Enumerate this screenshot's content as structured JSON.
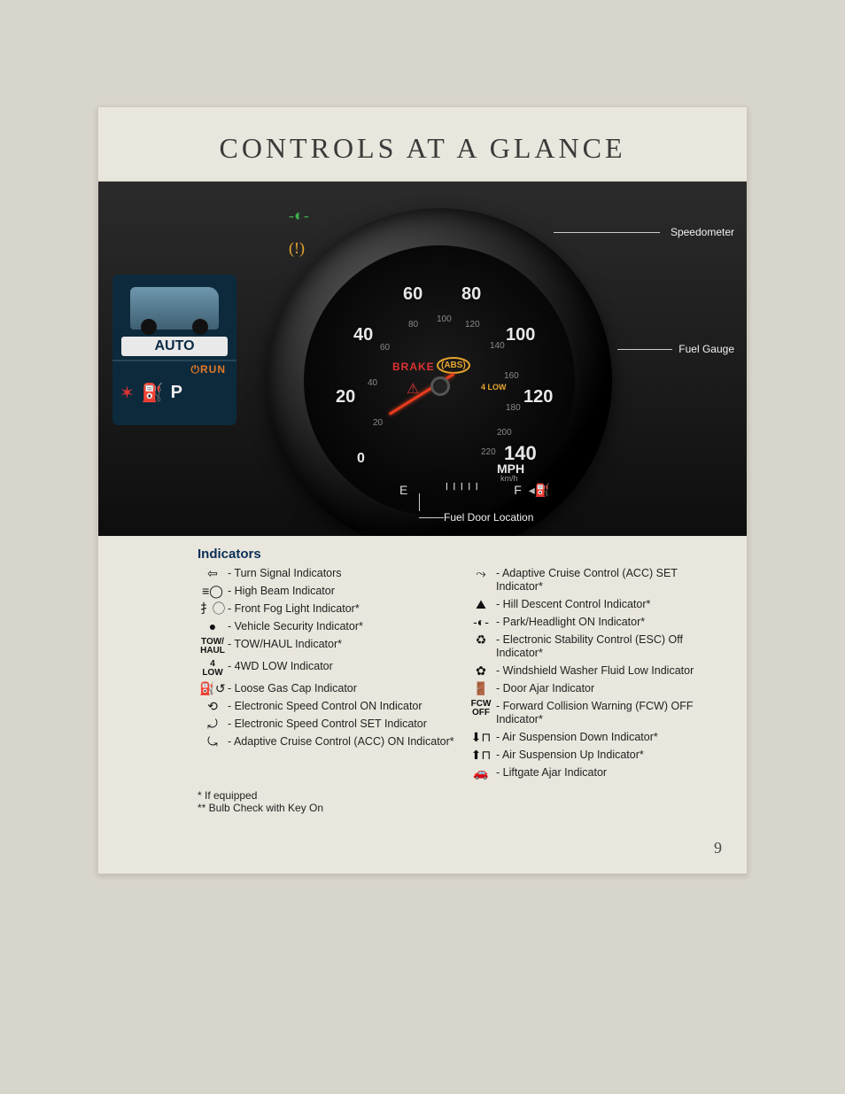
{
  "title": "CONTROLS AT A GLANCE",
  "page_number": "9",
  "photo": {
    "screen_mode": "AUTO",
    "screen_run": "⏻RUN",
    "gear": "P",
    "speeds": [
      "0",
      "20",
      "40",
      "60",
      "80",
      "100",
      "120",
      "140"
    ],
    "inner_speeds": [
      "20",
      "40",
      "60",
      "80",
      "100",
      "120",
      "140",
      "160",
      "180",
      "200",
      "220"
    ],
    "mph": "MPH",
    "kmh": "km/h",
    "brake": "BRAKE",
    "abs": "(ABS)",
    "low": "4\nLOW",
    "fuel_e": "E",
    "fuel_f": "F",
    "callouts": {
      "speedometer": "Speedometer",
      "fuel_gauge": "Fuel Gauge",
      "fuel_door": "Fuel Door Location"
    }
  },
  "indicators_heading": "Indicators",
  "left_indicators": [
    {
      "icon": "⇦",
      "label": "Turn Signal Indicators"
    },
    {
      "icon": "≡◯",
      "label": "High Beam Indicator"
    },
    {
      "icon": "扌◯",
      "label": "Front Fog Light Indicator*"
    },
    {
      "icon": "●",
      "label": "Vehicle Security Indicator*"
    },
    {
      "icon": "TOW/\nHAUL",
      "small": true,
      "label": "TOW/HAUL Indicator*"
    },
    {
      "icon": "4\nLOW",
      "small": true,
      "label": "4WD LOW Indicator"
    },
    {
      "icon": "⛽↺",
      "label": "Loose Gas Cap Indicator"
    },
    {
      "icon": "⟲",
      "label": "Electronic Speed Control ON Indicator"
    },
    {
      "icon": "⤾",
      "label": "Electronic Speed Control SET Indicator"
    },
    {
      "icon": "⤿",
      "label": "Adaptive Cruise Control (ACC) ON Indicator*"
    }
  ],
  "right_indicators": [
    {
      "icon": "⤳",
      "label": "Adaptive Cruise Control (ACC) SET Indicator*"
    },
    {
      "icon": "⛰",
      "label": "Hill Descent Control Indicator*"
    },
    {
      "icon": "-◐-",
      "label": "Park/Headlight ON Indicator*"
    },
    {
      "icon": "♻",
      "label": "Electronic Stability Control (ESC) Off Indicator*"
    },
    {
      "icon": "✿",
      "label": "Windshield Washer Fluid Low Indicator"
    },
    {
      "icon": "🚪",
      "label": "Door Ajar Indicator"
    },
    {
      "icon": "FCW\nOFF",
      "small": true,
      "label": "Forward Collision Warning (FCW) OFF Indicator*"
    },
    {
      "icon": "⬇⊓",
      "label": "Air Suspension Down Indicator*"
    },
    {
      "icon": "⬆⊓",
      "label": "Air Suspension Up Indicator*"
    },
    {
      "icon": "🚗",
      "label": "Liftgate Ajar Indicator"
    }
  ],
  "footnotes": [
    "* If equipped",
    "** Bulb Check with Key On"
  ]
}
